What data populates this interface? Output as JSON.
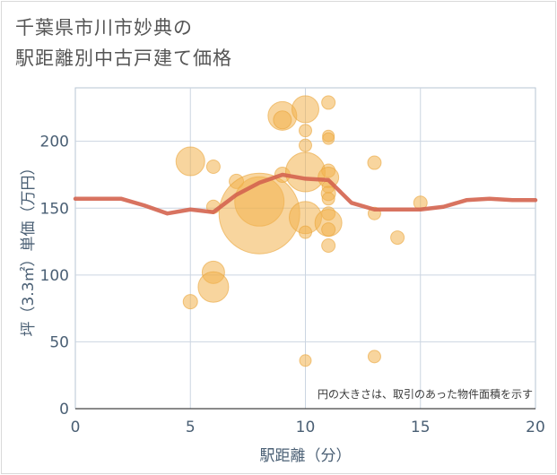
{
  "chart_data": {
    "type": "scatter",
    "title_lines": [
      "千葉県市川市妙典の",
      "駅距離別中古戸建て価格"
    ],
    "xlabel": "駅距離（分）",
    "ylabel": "坪（3.3㎡）単価（万円）",
    "xlim": [
      0,
      20
    ],
    "ylim": [
      0,
      240
    ],
    "x_ticks": [
      0,
      5,
      10,
      15,
      20
    ],
    "y_ticks": [
      0,
      50,
      100,
      150,
      200
    ],
    "grid": true,
    "note": "円の大きさは、取引のあった物件面積を示す",
    "colors": {
      "bubble": "#f2b24f",
      "bubble_stroke": "#e9a53a",
      "line": "#d4644f",
      "grid": "#cbd5e1",
      "frame": "#b7c4d3"
    },
    "bubbles": [
      {
        "x": 5,
        "y": 185,
        "size": 3.2
      },
      {
        "x": 5,
        "y": 80,
        "size": 1.6
      },
      {
        "x": 6,
        "y": 181,
        "size": 1.5
      },
      {
        "x": 6,
        "y": 151,
        "size": 1.5
      },
      {
        "x": 6,
        "y": 102,
        "size": 2.5
      },
      {
        "x": 6,
        "y": 91,
        "size": 3.4
      },
      {
        "x": 7,
        "y": 170,
        "size": 1.6
      },
      {
        "x": 8,
        "y": 155,
        "size": 5.5
      },
      {
        "x": 8,
        "y": 146,
        "size": 9.0
      },
      {
        "x": 9,
        "y": 219,
        "size": 3.2
      },
      {
        "x": 9,
        "y": 216,
        "size": 2.0
      },
      {
        "x": 9,
        "y": 175,
        "size": 1.7
      },
      {
        "x": 10,
        "y": 224,
        "size": 3.0
      },
      {
        "x": 10,
        "y": 208,
        "size": 1.4
      },
      {
        "x": 10,
        "y": 197,
        "size": 1.4
      },
      {
        "x": 10,
        "y": 177,
        "size": 4.4
      },
      {
        "x": 10,
        "y": 143,
        "size": 3.6
      },
      {
        "x": 10,
        "y": 132,
        "size": 1.4
      },
      {
        "x": 10,
        "y": 36,
        "size": 1.3
      },
      {
        "x": 11,
        "y": 229,
        "size": 1.5
      },
      {
        "x": 11,
        "y": 204,
        "size": 1.3
      },
      {
        "x": 11,
        "y": 202,
        "size": 1.3
      },
      {
        "x": 11,
        "y": 178,
        "size": 1.5
      },
      {
        "x": 11,
        "y": 173,
        "size": 2.3
      },
      {
        "x": 11,
        "y": 166,
        "size": 1.4
      },
      {
        "x": 11,
        "y": 161,
        "size": 1.6
      },
      {
        "x": 11,
        "y": 157,
        "size": 1.4
      },
      {
        "x": 11,
        "y": 146,
        "size": 1.5
      },
      {
        "x": 11,
        "y": 139,
        "size": 3.0
      },
      {
        "x": 11,
        "y": 134,
        "size": 1.5
      },
      {
        "x": 11,
        "y": 122,
        "size": 1.5
      },
      {
        "x": 13,
        "y": 184,
        "size": 1.5
      },
      {
        "x": 13,
        "y": 146,
        "size": 1.4
      },
      {
        "x": 13,
        "y": 39,
        "size": 1.4
      },
      {
        "x": 14,
        "y": 128,
        "size": 1.5
      },
      {
        "x": 15,
        "y": 154,
        "size": 1.5
      }
    ],
    "line": {
      "x": [
        0,
        1,
        2,
        3,
        4,
        5,
        6,
        7,
        8,
        9,
        10,
        11,
        12,
        13,
        14,
        15,
        16,
        17,
        18,
        19,
        20
      ],
      "y": [
        157,
        157,
        157,
        152,
        146,
        149,
        147,
        160,
        169,
        175,
        172,
        171,
        154,
        149,
        149,
        149,
        151,
        156,
        157,
        156,
        156
      ]
    }
  }
}
